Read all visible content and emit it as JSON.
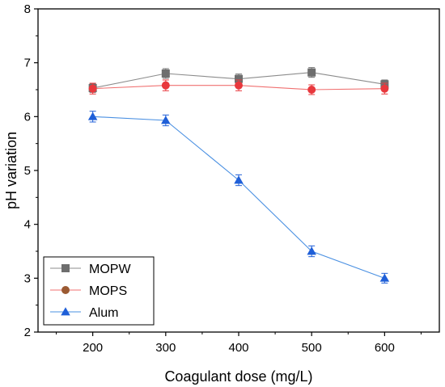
{
  "chart_data": {
    "type": "line",
    "xlabel": "Coagulant dose (mg/L)",
    "ylabel": "pH variation",
    "x": [
      200,
      300,
      400,
      500,
      600
    ],
    "xlim": [
      125,
      675
    ],
    "ylim": [
      2,
      8
    ],
    "xticks": [
      200,
      300,
      400,
      500,
      600
    ],
    "yticks": [
      2,
      3,
      4,
      5,
      6,
      7,
      8
    ],
    "legend_position": "bottom-left",
    "grid": false,
    "series": [
      {
        "name": "MOPW",
        "values": [
          6.53,
          6.8,
          6.7,
          6.82,
          6.6
        ],
        "errors": [
          0.08,
          0.09,
          0.09,
          0.09,
          0.08
        ],
        "marker": "square",
        "color": "#6e6e6e",
        "line_color": "#8c8c8c",
        "legend_marker_color": "#6e6e6e"
      },
      {
        "name": "MOPS",
        "values": [
          6.52,
          6.58,
          6.58,
          6.5,
          6.52
        ],
        "errors": [
          0.1,
          0.1,
          0.1,
          0.09,
          0.1
        ],
        "marker": "circle",
        "color": "#e8383d",
        "line_color": "#f07070",
        "legend_marker_color": "#9b5a32"
      },
      {
        "name": "Alum",
        "values": [
          6.0,
          5.93,
          4.82,
          3.5,
          3.0
        ],
        "errors": [
          0.1,
          0.1,
          0.1,
          0.1,
          0.09
        ],
        "marker": "triangle",
        "color": "#1f5fd8",
        "line_color": "#4a90e2",
        "legend_marker_color": "#1f5fd8"
      }
    ]
  }
}
